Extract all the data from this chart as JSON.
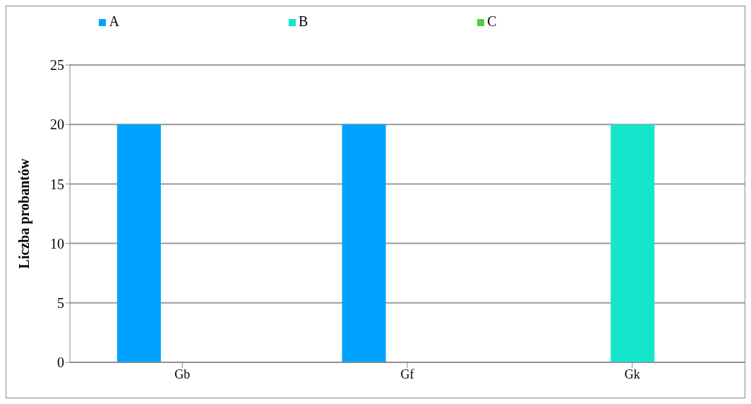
{
  "chart_data": {
    "type": "bar",
    "ylabel": "Liczba probantów",
    "categories": [
      "Gb",
      "Gf",
      "Gk"
    ],
    "series": [
      {
        "name": "A",
        "color": "#00a2ff",
        "values": [
          20,
          20,
          0
        ]
      },
      {
        "name": "B",
        "color": "#14e6cc",
        "values": [
          0,
          0,
          20
        ]
      },
      {
        "name": "C",
        "color": "#50d040",
        "values": [
          0,
          0,
          0
        ]
      }
    ],
    "ylim": [
      0,
      25
    ],
    "yticks": [
      0,
      5,
      10,
      15,
      20,
      25
    ],
    "grid": "y",
    "legend": "top"
  }
}
